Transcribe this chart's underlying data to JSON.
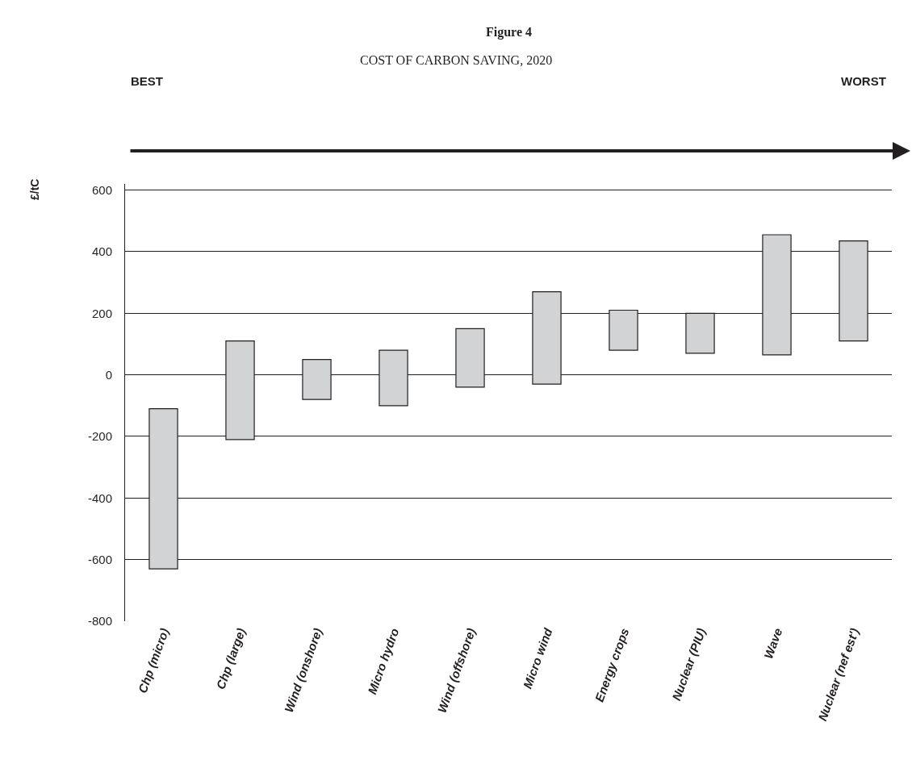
{
  "chart_data": {
    "type": "bar",
    "title": "Figure 4",
    "subtitle": "COST OF CARBON SAVING, 2020",
    "ylabel": "£/tC",
    "categories": [
      "Chp (micro)",
      "Chp (large)",
      "Wind (onshore)",
      "Micro hydro",
      "Wind (offshore)",
      "Micro wind",
      "Energy crops",
      "Nuclear (PIU)",
      "Wave",
      "Nuclear (nef est')"
    ],
    "base": [
      -630,
      -210,
      -80,
      -100,
      -40,
      -30,
      80,
      70,
      65,
      110
    ],
    "values": [
      520,
      320,
      130,
      180,
      190,
      300,
      130,
      130,
      390,
      325
    ],
    "color": "#d1d3d4",
    "ylim": [
      -800,
      620
    ],
    "yticks": [
      -800,
      -600,
      -400,
      -200,
      0,
      200,
      400,
      600
    ],
    "grid": "y",
    "annotations": [
      "BEST",
      "WORST"
    ]
  }
}
